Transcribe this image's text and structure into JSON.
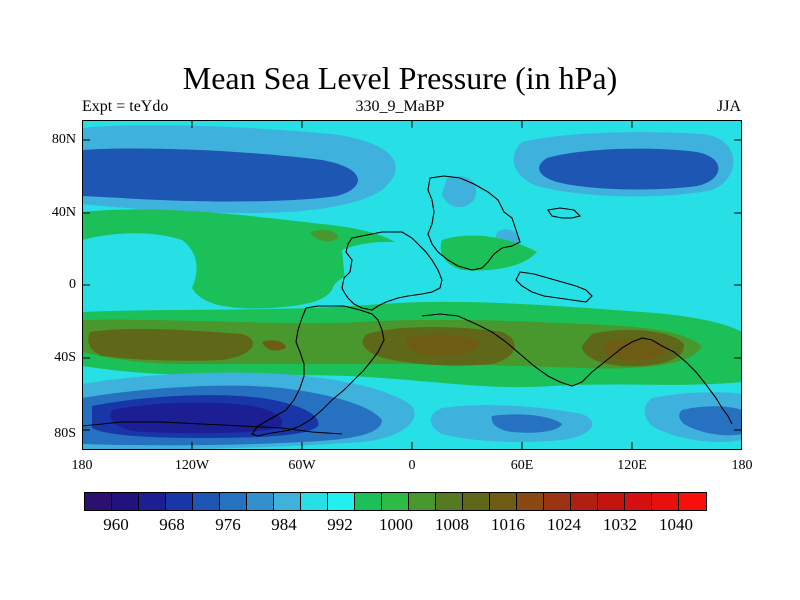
{
  "title": "Mean Sea Level Pressure (in hPa)",
  "subtitle_left": "Expt = teYdo",
  "subtitle_center": "330_9_MaBP",
  "subtitle_right": "JJA",
  "y_ticks": [
    "80N",
    "40N",
    "0",
    "40S",
    "80S"
  ],
  "x_ticks": [
    "180",
    "120W",
    "60W",
    "0",
    "60E",
    "120E",
    "180"
  ],
  "colorbar": {
    "labels": [
      "960",
      "968",
      "976",
      "984",
      "992",
      "1000",
      "1008",
      "1016",
      "1024",
      "1032",
      "1040"
    ],
    "colors": [
      "#2c1070",
      "#22127e",
      "#1c1e94",
      "#1836a8",
      "#1e56b4",
      "#2672c0",
      "#3290cc",
      "#3eb2dc",
      "#26e0e6",
      "#22f0f0",
      "#1cc058",
      "#2cbc46",
      "#48982e",
      "#567a22",
      "#5e6818",
      "#6e5c14",
      "#8a4814",
      "#9c3414",
      "#b02012",
      "#c41410",
      "#d6100e",
      "#e8100c",
      "#f80f0a"
    ]
  },
  "chart_data": {
    "type": "heatmap",
    "title": "Mean Sea Level Pressure (in hPa)",
    "variable": "Mean Sea Level Pressure",
    "units": "hPa",
    "experiment": "Expt = teYdo",
    "period": "330_9_MaBP",
    "season": "JJA",
    "x_range": [
      -180,
      180
    ],
    "y_range": [
      -90,
      90
    ],
    "x_tick_labels": [
      "180",
      "120W",
      "60W",
      "0",
      "60E",
      "120E",
      "180"
    ],
    "y_tick_labels": [
      "80N",
      "40N",
      "0",
      "40S",
      "80S"
    ],
    "levels": [
      960,
      964,
      968,
      972,
      976,
      980,
      984,
      988,
      992,
      996,
      1000,
      1004,
      1008,
      1012,
      1016,
      1020,
      1024,
      1028,
      1032,
      1036,
      1040,
      1044
    ],
    "colorbar_labels": [
      "960",
      "968",
      "976",
      "984",
      "992",
      "1000",
      "1008",
      "1016",
      "1024",
      "1032",
      "1040"
    ]
  }
}
